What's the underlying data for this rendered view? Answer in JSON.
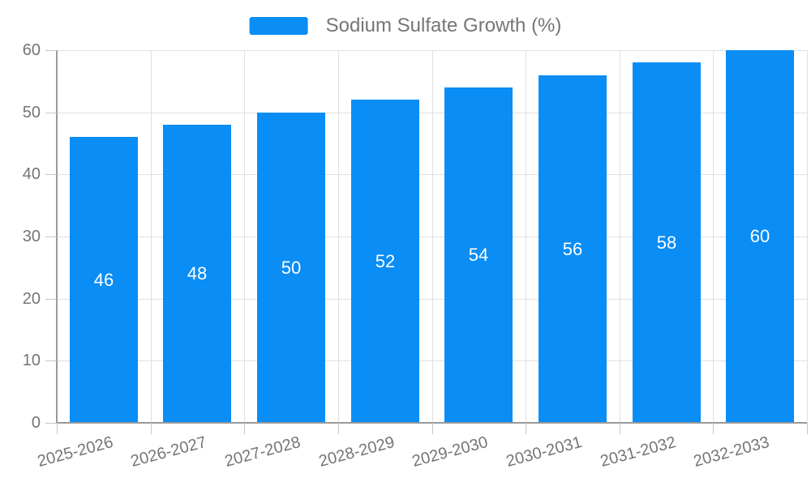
{
  "legend": {
    "label": "Sodium Sulfate Growth (%)",
    "swatch_color": "#0a8df5"
  },
  "chart_data": {
    "type": "bar",
    "title": "",
    "categories": [
      "2025-2026",
      "2026-2027",
      "2027-2028",
      "2028-2029",
      "2029-2030",
      "2030-2031",
      "2031-2032",
      "2032-2033"
    ],
    "series": [
      {
        "name": "Sodium Sulfate Growth (%)",
        "color": "#0a8df5",
        "values": [
          46,
          48,
          50,
          52,
          54,
          56,
          58,
          60
        ]
      }
    ],
    "value_labels": [
      "46",
      "48",
      "50",
      "52",
      "54",
      "56",
      "58",
      "60"
    ],
    "xlabel": "",
    "ylabel": "",
    "ylim": [
      0,
      60
    ],
    "y_ticks": [
      0,
      10,
      20,
      30,
      40,
      50,
      60
    ],
    "grid": true,
    "legend_position": "top",
    "value_label_position": "inside-center",
    "value_label_color": "#ffffff",
    "x_label_rotation_deg": -15
  },
  "colors": {
    "background": "#ffffff",
    "gridline": "#e0e0e0",
    "axis_line": "#999999",
    "tick": "#c6c6c6",
    "axis_label": "#757575",
    "legend_text": "#757575"
  }
}
